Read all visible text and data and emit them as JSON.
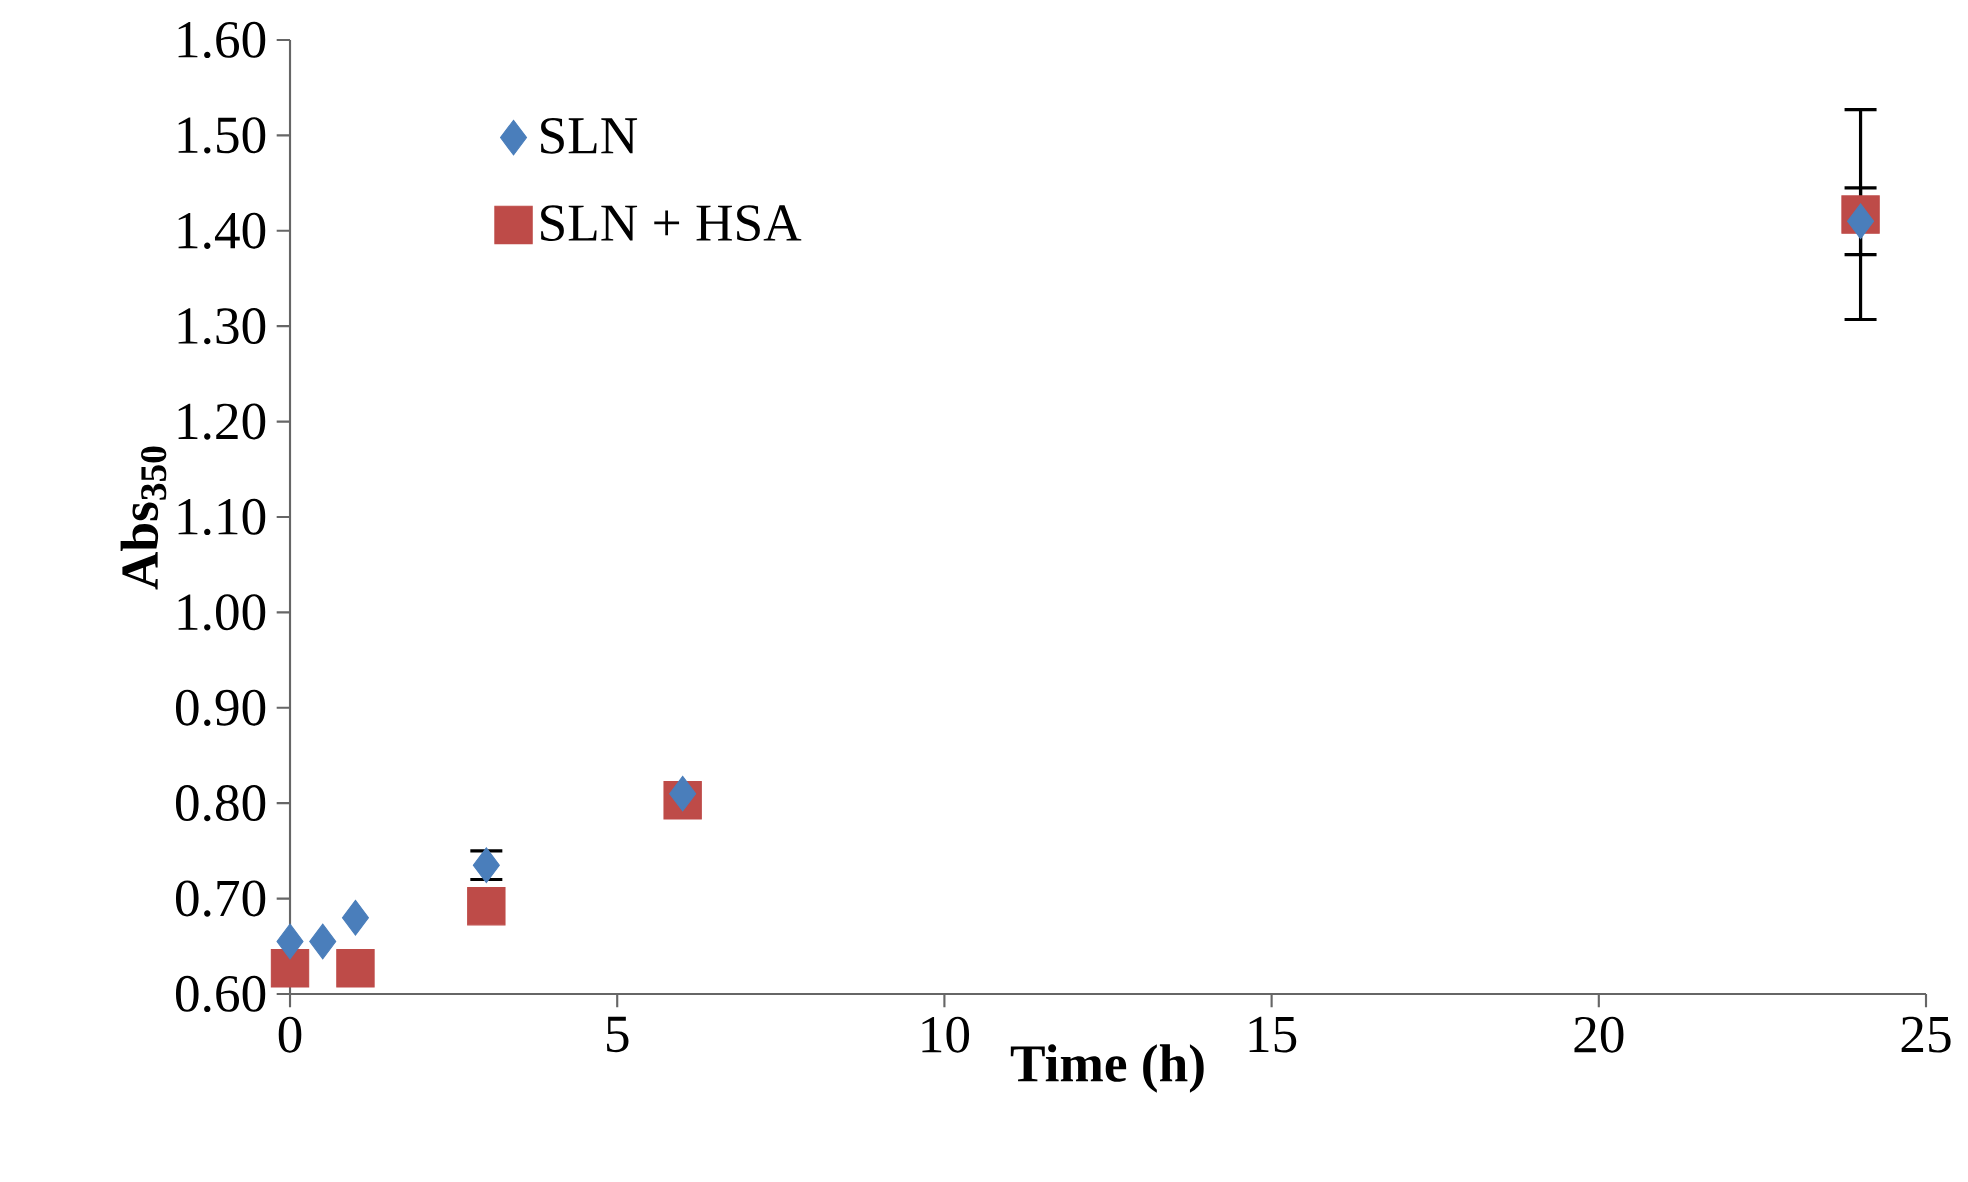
{
  "chart_data": {
    "type": "scatter",
    "xlabel": "Time (h)",
    "ylabel": "Abs$_{350}$",
    "xlim": [
      0,
      25
    ],
    "xticks": [
      0,
      5,
      10,
      15,
      20,
      25
    ],
    "ylim": [
      0.6,
      1.6
    ],
    "yticks": [
      {
        "value": 0.6,
        "label": "0.60"
      },
      {
        "value": 0.7,
        "label": "0.70"
      },
      {
        "value": 0.8,
        "label": "0.80"
      },
      {
        "value": 0.9,
        "label": "0.90"
      },
      {
        "value": 1.0,
        "label": "1.00"
      },
      {
        "value": 1.1,
        "label": "1.10"
      },
      {
        "value": 1.2,
        "label": "1.20"
      },
      {
        "value": 1.3,
        "label": "1.30"
      },
      {
        "value": 1.4,
        "label": "1.40"
      },
      {
        "value": 1.5,
        "label": "1.50"
      },
      {
        "value": 1.6,
        "label": "1.60"
      }
    ],
    "grid": false,
    "legend": "top left",
    "series": [
      {
        "name": "SLN",
        "color": "#4a7ebb",
        "marker": "diamond",
        "x": [
          0,
          0.5,
          1,
          3,
          6,
          24
        ],
        "values": [
          0.655,
          0.655,
          0.68,
          0.735,
          0.81,
          1.41
        ],
        "errors": [
          null,
          null,
          null,
          0.015,
          null,
          0.035
        ]
      },
      {
        "name": "SLN + HSA",
        "color": "#be4b48",
        "marker": "square",
        "x": [
          0,
          1,
          3,
          6,
          24
        ],
        "values": [
          0.627,
          0.627,
          0.692,
          0.803,
          1.417
        ],
        "errors": [
          null,
          null,
          null,
          null,
          0.11
        ]
      }
    ]
  }
}
